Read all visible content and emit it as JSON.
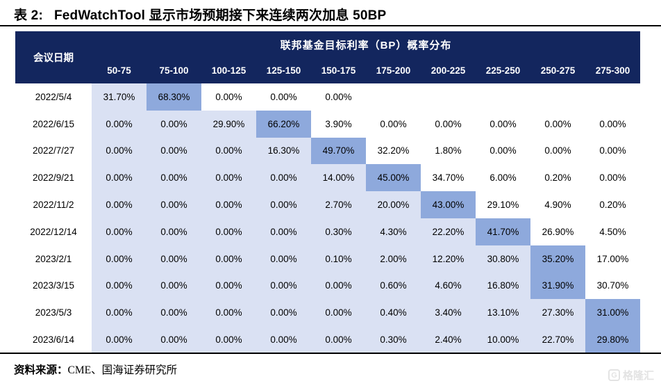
{
  "title": {
    "prefix": "表 2:",
    "text": "FedWatchTool 显示市场预期接下来连续两次加息 50BP"
  },
  "footer": {
    "label": "资料来源：",
    "text": "CME、国海证券研究所"
  },
  "watermark": {
    "icon_letter": "G",
    "text": "格隆汇"
  },
  "colors": {
    "header_bg": "#13265E",
    "cell_light": "#DAE1F3",
    "cell_highlight": "#8EA9DC",
    "watermark": "#E3E3E3"
  },
  "chart_data": {
    "type": "table",
    "title": "表 2: FedWatchTool 显示市场预期接下来连续两次加息 50BP",
    "group_header": "联邦基金目标利率（BP）概率分布",
    "row_header": "会议日期",
    "columns": [
      "50-75",
      "75-100",
      "100-125",
      "125-150",
      "150-175",
      "175-200",
      "200-225",
      "225-250",
      "250-275",
      "275-300"
    ],
    "unit": "%",
    "rows": [
      {
        "date": "2022/5/4",
        "values": [
          31.7,
          68.3,
          0,
          0,
          0,
          null,
          null,
          null,
          null,
          null
        ]
      },
      {
        "date": "2022/6/15",
        "values": [
          0,
          0,
          29.9,
          66.2,
          3.9,
          0,
          0,
          0,
          0,
          0
        ]
      },
      {
        "date": "2022/7/27",
        "values": [
          0,
          0,
          0,
          16.3,
          49.7,
          32.2,
          1.8,
          0,
          0,
          0
        ]
      },
      {
        "date": "2022/9/21",
        "values": [
          0,
          0,
          0,
          0,
          14.0,
          45.0,
          34.7,
          6.0,
          0.2,
          0
        ]
      },
      {
        "date": "2022/11/2",
        "values": [
          0,
          0,
          0,
          0,
          2.7,
          20.0,
          43.0,
          29.1,
          4.9,
          0.2
        ]
      },
      {
        "date": "2022/12/14",
        "values": [
          0,
          0,
          0,
          0,
          0.3,
          4.3,
          22.2,
          41.7,
          26.9,
          4.5
        ]
      },
      {
        "date": "2023/2/1",
        "values": [
          0,
          0,
          0,
          0,
          0.1,
          2.0,
          12.2,
          30.8,
          35.2,
          17.0
        ]
      },
      {
        "date": "2023/3/15",
        "values": [
          0,
          0,
          0,
          0,
          0,
          0.6,
          4.6,
          16.8,
          31.9,
          30.7
        ]
      },
      {
        "date": "2023/5/3",
        "values": [
          0,
          0,
          0,
          0,
          0,
          0.4,
          3.4,
          13.1,
          27.3,
          31.0
        ]
      },
      {
        "date": "2023/6/14",
        "values": [
          0,
          0,
          0,
          0,
          0,
          0.3,
          2.4,
          10.0,
          22.7,
          29.8
        ]
      }
    ],
    "legend_position": "none",
    "grid": false,
    "highlight_rule": "per-row maximum shaded dark blue; cells at or left of it shaded light blue; cells right of it white",
    "source": "CME、国海证券研究所"
  }
}
